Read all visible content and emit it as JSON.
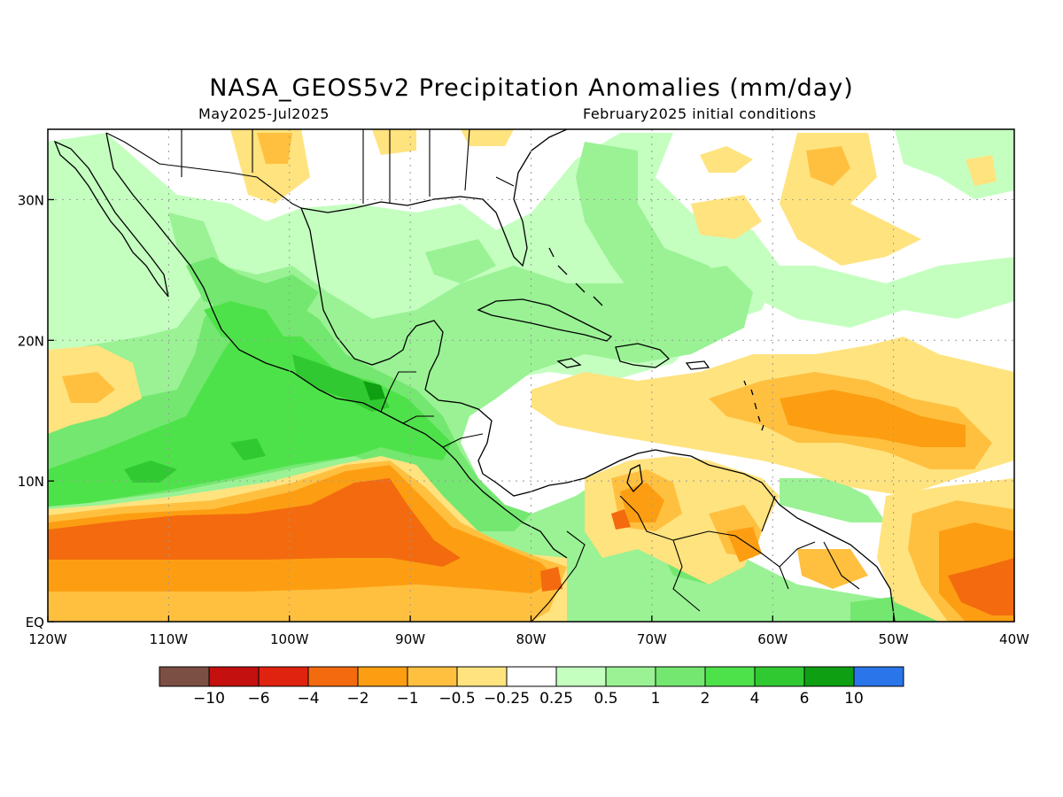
{
  "header": {
    "title": "NASA_GEOS5v2 Precipitation Anomalies (mm/day)",
    "period": "May2025-Jul2025",
    "init": "February2025 initial conditions"
  },
  "map": {
    "lon_range": [
      -120,
      -40
    ],
    "lat_range": [
      0,
      35
    ],
    "lon_ticks": [
      {
        "value": -120,
        "label": "120W"
      },
      {
        "value": -110,
        "label": "110W"
      },
      {
        "value": -100,
        "label": "100W"
      },
      {
        "value": -90,
        "label": "90W"
      },
      {
        "value": -80,
        "label": "80W"
      },
      {
        "value": -70,
        "label": "70W"
      },
      {
        "value": -60,
        "label": "60W"
      },
      {
        "value": -50,
        "label": "50W"
      },
      {
        "value": -40,
        "label": "40W"
      }
    ],
    "lat_ticks": [
      {
        "value": 0,
        "label": "EQ"
      },
      {
        "value": 10,
        "label": "10N"
      },
      {
        "value": 20,
        "label": "20N"
      },
      {
        "value": 30,
        "label": "30N"
      }
    ],
    "grid": "dotted"
  },
  "colorbar": {
    "colors": [
      "#7b4f44",
      "#c4100f",
      "#e0230f",
      "#f36b0e",
      "#fd9e12",
      "#ffc040",
      "#ffe37f",
      "#ffffff",
      "#c4ffc0",
      "#9af294",
      "#74e770",
      "#4ee24a",
      "#31c931",
      "#0f9f12",
      "#2a75ea"
    ],
    "labels": [
      "-10",
      "-6",
      "-4",
      "-2",
      "-1",
      "-0.5",
      "-0.25",
      "0.25",
      "0.5",
      "1",
      "2",
      "4",
      "6",
      "10"
    ]
  },
  "anomaly_regions": [
    {
      "level": "-2",
      "color": "#f36b0e",
      "area": "Eastern Pacific ITCZ band 3-8N, 120W-85W"
    },
    {
      "level": "-1",
      "color": "#fd9e12",
      "area": "Eastern Pacific 2-12N, 120W-78W"
    },
    {
      "level": "-0.5",
      "color": "#ffc040",
      "area": "Tropical Atlantic 12-18N, 65W-40W"
    },
    {
      "level": "-0.25",
      "color": "#ffe37f",
      "area": "Subtropical Atlantic 20-33N, 60W-40W"
    },
    {
      "level": "-2",
      "color": "#f36b0e",
      "area": "Equatorial Atlantic 0-6N, 48W-40W"
    },
    {
      "level": "1",
      "color": "#9af294",
      "area": "Mexico and Central America 10-28N"
    },
    {
      "level": "4",
      "color": "#4ee24a",
      "area": "Pacific coast of Mexico 10-20N"
    },
    {
      "level": "6",
      "color": "#31c931",
      "area": "Southern Mexico / Guatemala 15-17N"
    },
    {
      "level": "0.5",
      "color": "#c4ffc0",
      "area": "Gulf of Mexico and western Caribbean"
    },
    {
      "level": "1",
      "color": "#9af294",
      "area": "Northern South America 0-6N, 80W-50W"
    }
  ]
}
